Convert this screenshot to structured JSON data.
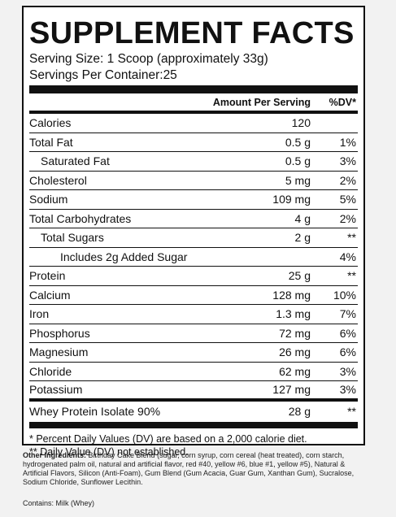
{
  "title": "SUPPLEMENT FACTS",
  "serving_size_label": "Serving Size:",
  "serving_size_value": "1 Scoop (approximately 33g)",
  "servings_label": "Servings Per Container:",
  "servings_value": "25",
  "header": {
    "amount": "Amount Per Serving",
    "dv": "%DV*"
  },
  "rows": [
    {
      "name": "Calories",
      "amount": "120",
      "dv": ""
    },
    {
      "name": "Total Fat",
      "amount": "0.5 g",
      "dv": "1%"
    },
    {
      "name": "Saturated Fat",
      "amount": "0.5 g",
      "dv": "3%"
    },
    {
      "name": "Cholesterol",
      "amount": "5 mg",
      "dv": "2%"
    },
    {
      "name": "Sodium",
      "amount": "109 mg",
      "dv": "5%"
    },
    {
      "name": "Total Carbohydrates",
      "amount": "4 g",
      "dv": "2%"
    },
    {
      "name": "Total Sugars",
      "amount": "2 g",
      "dv": "**"
    },
    {
      "name": "Includes 2g Added Sugar",
      "amount": "",
      "dv": "4%"
    },
    {
      "name": "Protein",
      "amount": "25 g",
      "dv": "**"
    },
    {
      "name": "Calcium",
      "amount": "128 mg",
      "dv": "10%"
    },
    {
      "name": "Iron",
      "amount": "1.3 mg",
      "dv": "7%"
    },
    {
      "name": "Phosphorus",
      "amount": "72 mg",
      "dv": "6%"
    },
    {
      "name": "Magnesium",
      "amount": "26 mg",
      "dv": "6%"
    },
    {
      "name": "Chloride",
      "amount": "62 mg",
      "dv": "3%"
    },
    {
      "name": "Potassium",
      "amount": "127 mg",
      "dv": "3%"
    }
  ],
  "whey": {
    "name": "Whey Protein Isolate 90%",
    "amount": "28 g",
    "dv": "**"
  },
  "footnotes": [
    "* Percent Daily Values (DV) are based on a 2,000 calorie diet.",
    "** Daily Value (DV) not established."
  ],
  "ingredients_label": "Other Ingredients:",
  "ingredients_text": " Birthday Cake Blend (sugar, corn syrup, corn cereal (heat treated), corn starch, hydrogenated palm oil, natural and artificial flavor, red #40, yellow #6, blue #1, yellow #5), Natural & Artificial Flavors, Silicon (Anti-Foam), Gum Blend (Gum Acacia, Guar Gum, Xanthan Gum), Sucralose, Sodium Chloride, Sunflower Lecithin.",
  "contains": "Contains: Milk (Whey)"
}
